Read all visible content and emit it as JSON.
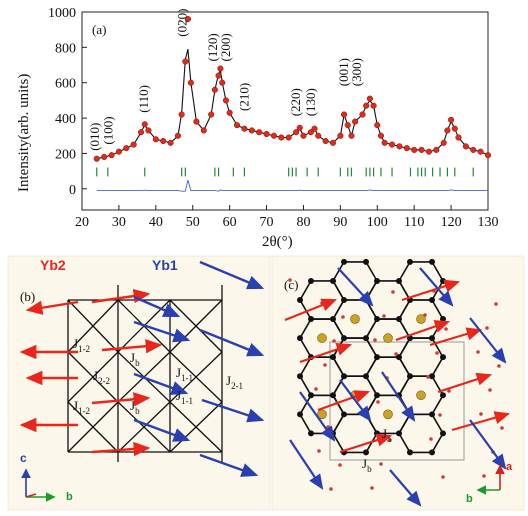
{
  "panel_a": {
    "label": "(a)",
    "ylabel": "Intensity(arb. units)",
    "xlabel": "2θ(°)",
    "peak_labels": [
      {
        "text": "(010)",
        "x": 23.5,
        "y": 1000
      },
      {
        "text": "(100)",
        "x": 27.2,
        "y": 1000
      },
      {
        "text": "(110)",
        "x": 36.8,
        "y": 1000
      },
      {
        "text": "(020)",
        "x": 47.2,
        "y": 1000
      },
      {
        "text": "(120)",
        "x": 55.5,
        "y": 1000
      },
      {
        "text": "(200)",
        "x": 59.0,
        "y": 1000
      },
      {
        "text": "(210)",
        "x": 64.0,
        "y": 1000
      },
      {
        "text": "(220)",
        "x": 78.0,
        "y": 1000
      },
      {
        "text": "(130)",
        "x": 82.0,
        "y": 1000
      },
      {
        "text": "(001)",
        "x": 91.0,
        "y": 1000
      },
      {
        "text": "(300)",
        "x": 94.5,
        "y": 1000
      }
    ]
  },
  "chart_data": {
    "type": "scatter",
    "xlim": [
      20,
      130
    ],
    "ylim": [
      -120,
      1000
    ],
    "xticks": [
      20,
      30,
      40,
      50,
      60,
      70,
      80,
      90,
      100,
      110,
      120,
      130
    ],
    "yticks": [
      0,
      200,
      400,
      600,
      800,
      1000
    ],
    "observed": {
      "x": [
        24,
        26,
        28,
        30,
        32,
        34,
        36,
        37,
        38,
        40,
        42,
        44,
        46,
        47,
        48,
        48.7,
        49.5,
        51,
        53,
        55,
        56,
        57,
        57.5,
        58,
        59,
        60,
        62,
        64,
        66,
        68,
        70,
        72,
        74,
        76,
        78,
        79,
        80,
        82,
        83,
        84,
        86,
        88,
        90,
        91,
        92,
        93,
        94,
        96,
        97,
        98,
        99,
        100,
        101,
        102,
        104,
        106,
        108,
        110,
        112,
        114,
        116,
        118,
        119,
        120,
        121,
        122,
        124,
        126,
        128,
        130
      ],
      "y": [
        170,
        180,
        190,
        210,
        230,
        250,
        320,
        365,
        330,
        280,
        270,
        260,
        300,
        420,
        720,
        960,
        600,
        380,
        330,
        420,
        560,
        640,
        680,
        600,
        500,
        430,
        360,
        340,
        330,
        320,
        310,
        300,
        290,
        290,
        320,
        345,
        300,
        320,
        340,
        300,
        270,
        260,
        300,
        420,
        360,
        300,
        380,
        420,
        470,
        510,
        470,
        360,
        300,
        260,
        250,
        240,
        230,
        220,
        220,
        210,
        220,
        260,
        330,
        390,
        340,
        290,
        240,
        220,
        210,
        190
      ]
    },
    "calculated": {
      "x": [
        24,
        26,
        28,
        30,
        32,
        34,
        36,
        37,
        38,
        40,
        42,
        44,
        46,
        47,
        48,
        48.7,
        49.5,
        51,
        53,
        55,
        56,
        57,
        57.5,
        58,
        59,
        60,
        62,
        64,
        66,
        68,
        70,
        72,
        74,
        76,
        78,
        79,
        80,
        82,
        83,
        84,
        86,
        88,
        90,
        91,
        92,
        93,
        94,
        96,
        97,
        98,
        99,
        100,
        101,
        102,
        104,
        106,
        108,
        110,
        112,
        114,
        116,
        118,
        119,
        120,
        121,
        122,
        124,
        126,
        128,
        130
      ],
      "y": [
        170,
        180,
        190,
        210,
        230,
        250,
        320,
        360,
        330,
        280,
        270,
        260,
        300,
        430,
        730,
        790,
        600,
        380,
        330,
        420,
        560,
        650,
        670,
        600,
        500,
        430,
        360,
        340,
        330,
        320,
        310,
        300,
        290,
        290,
        320,
        340,
        300,
        320,
        340,
        300,
        270,
        260,
        300,
        420,
        360,
        300,
        380,
        420,
        470,
        500,
        470,
        360,
        300,
        260,
        250,
        240,
        230,
        220,
        220,
        210,
        220,
        260,
        330,
        380,
        340,
        290,
        240,
        220,
        210,
        190
      ]
    },
    "bragg_positions": [
      24,
      27,
      37,
      47,
      48,
      56,
      57,
      61,
      64,
      76,
      77,
      78,
      81,
      84,
      90,
      92,
      93,
      97,
      98,
      99,
      101,
      104,
      109,
      111,
      112,
      113,
      115,
      117,
      119,
      121,
      126
    ],
    "difference_offset": -10
  },
  "panel_b": {
    "label": "(b)",
    "legend_yb2": "Yb2",
    "legend_yb1": "Yb1",
    "color_yb2": "#e8261c",
    "color_yb1": "#2a3fb0",
    "j_labels": [
      {
        "main": "J",
        "sub": "1-2"
      },
      {
        "main": "J",
        "sub": "b"
      },
      {
        "main": "J",
        "sub": "2-2"
      },
      {
        "main": "J",
        "sub": "1-1"
      },
      {
        "main": "J",
        "sub": "2-1"
      },
      {
        "main": "J",
        "sub": "1-2"
      },
      {
        "main": "J",
        "sub": "b"
      },
      {
        "main": "J",
        "sub": "1-1"
      }
    ],
    "axis_c": "c",
    "axis_b": "b"
  },
  "panel_c": {
    "label": "(c)",
    "j_a": {
      "main": "J",
      "sub": "a"
    },
    "j_b": {
      "main": "J",
      "sub": "b"
    },
    "axis_a": "a",
    "axis_b": "b"
  }
}
